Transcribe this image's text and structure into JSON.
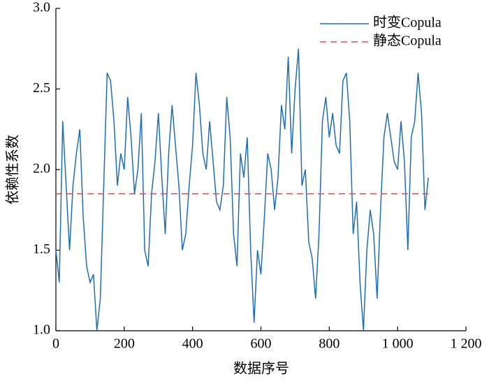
{
  "chart_data": {
    "type": "line",
    "xlabel": "数据序号",
    "ylabel": "依赖性系数",
    "x": [
      0,
      10,
      20,
      30,
      40,
      50,
      60,
      70,
      80,
      90,
      100,
      110,
      120,
      130,
      140,
      150,
      160,
      170,
      180,
      190,
      200,
      210,
      220,
      230,
      240,
      250,
      260,
      270,
      280,
      290,
      300,
      310,
      320,
      330,
      340,
      350,
      360,
      370,
      380,
      390,
      400,
      410,
      420,
      430,
      440,
      450,
      460,
      470,
      480,
      490,
      500,
      510,
      520,
      530,
      540,
      550,
      560,
      570,
      580,
      590,
      600,
      610,
      620,
      630,
      640,
      650,
      660,
      670,
      680,
      690,
      700,
      710,
      720,
      730,
      740,
      750,
      760,
      770,
      780,
      790,
      800,
      810,
      820,
      830,
      840,
      850,
      860,
      870,
      880,
      890,
      900,
      910,
      920,
      930,
      940,
      950,
      960,
      970,
      980,
      990,
      1000,
      1010,
      1020,
      1030,
      1040,
      1050,
      1060,
      1070,
      1080,
      1090
    ],
    "series": [
      {
        "name": "时变Copula",
        "color": "#1f6eb4",
        "dash": false,
        "values": [
          1.5,
          1.3,
          2.3,
          1.9,
          1.5,
          1.9,
          2.1,
          2.25,
          1.7,
          1.4,
          1.3,
          1.35,
          1.0,
          1.2,
          1.9,
          2.6,
          2.55,
          2.3,
          1.9,
          2.1,
          2.0,
          2.45,
          2.2,
          1.85,
          2.0,
          2.35,
          1.5,
          1.4,
          1.85,
          2.05,
          2.35,
          1.95,
          1.6,
          2.1,
          2.4,
          2.15,
          1.9,
          1.5,
          1.6,
          1.9,
          2.15,
          2.6,
          2.4,
          2.1,
          2.0,
          2.3,
          2.05,
          1.8,
          1.75,
          1.9,
          2.45,
          2.2,
          1.6,
          1.4,
          2.1,
          1.95,
          2.2,
          1.5,
          1.05,
          1.5,
          1.35,
          1.7,
          2.1,
          2.0,
          1.75,
          1.95,
          2.4,
          2.25,
          2.7,
          2.1,
          2.5,
          2.75,
          1.9,
          2.0,
          1.55,
          1.45,
          1.2,
          1.6,
          2.3,
          2.45,
          2.2,
          2.35,
          2.15,
          2.1,
          2.55,
          2.6,
          2.3,
          1.6,
          1.8,
          1.3,
          1.0,
          1.5,
          1.75,
          1.6,
          1.2,
          1.75,
          2.2,
          2.35,
          2.2,
          2.05,
          2.0,
          2.3,
          2.05,
          1.5,
          2.2,
          2.3,
          2.6,
          2.35,
          1.75,
          1.95
        ]
      },
      {
        "name": "静态Copula",
        "color": "#e05252",
        "dash": true,
        "x": [
          0,
          1090
        ],
        "values": [
          1.85,
          1.85
        ]
      }
    ],
    "xlim": [
      0,
      1200
    ],
    "xticks": [
      0,
      200,
      400,
      600,
      800,
      {
        "value": 1000,
        "label": "1 000"
      },
      {
        "value": 1200,
        "label": "1 200"
      }
    ],
    "ylim": [
      1.0,
      3.0
    ],
    "yticks": [
      {
        "value": 1.0,
        "label": "1.0"
      },
      1.5,
      {
        "value": 2.0,
        "label": "2.0"
      },
      2.5,
      {
        "value": 3.0,
        "label": "3.0"
      }
    ],
    "grid": false,
    "legend": "upper right"
  }
}
